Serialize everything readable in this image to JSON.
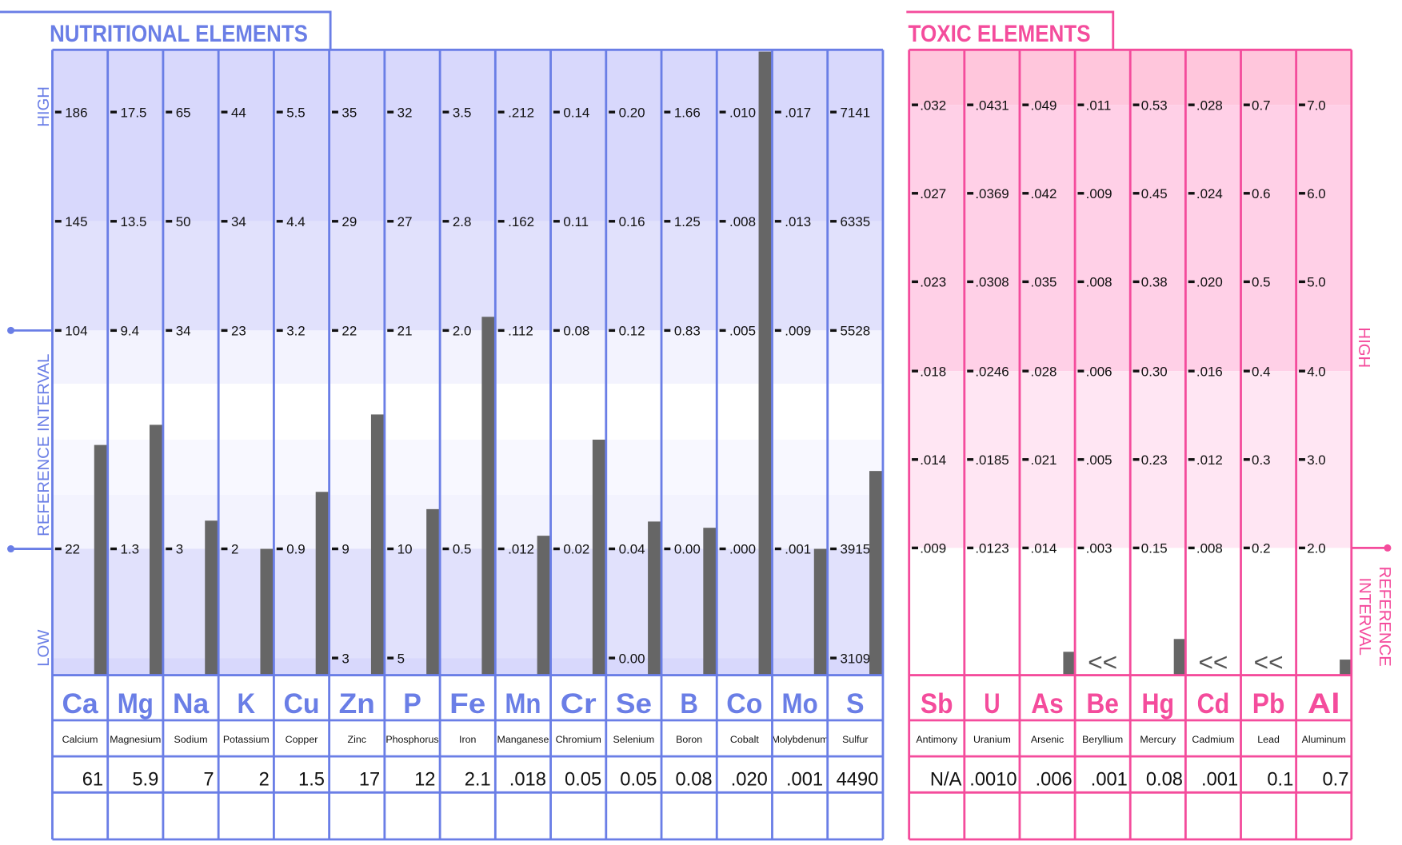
{
  "colors": {
    "nutritional": "#6a7ee6",
    "toxic": "#f44c9c",
    "bar": "#666666"
  },
  "chart_data": [
    {
      "type": "bar",
      "title": "NUTRITIONAL ELEMENTS",
      "side_labels": {
        "high": "HIGH",
        "reference": "REFERENCE INTERVAL",
        "low": "LOW"
      },
      "elements": [
        {
          "symbol": "Ca",
          "name": "Calcium",
          "result": "61",
          "ticks": [
            "186",
            "145",
            "104",
            "22",
            null
          ]
        },
        {
          "symbol": "Mg",
          "name": "Magnesium",
          "result": "5.9",
          "ticks": [
            "17.5",
            "13.5",
            "9.4",
            "1.3",
            null
          ]
        },
        {
          "symbol": "Na",
          "name": "Sodium",
          "result": "7",
          "ticks": [
            "65",
            "50",
            "34",
            "3",
            null
          ]
        },
        {
          "symbol": "K",
          "name": "Potassium",
          "result": "2",
          "ticks": [
            "44",
            "34",
            "23",
            "2",
            null
          ]
        },
        {
          "symbol": "Cu",
          "name": "Copper",
          "result": "1.5",
          "ticks": [
            "5.5",
            "4.4",
            "3.2",
            "0.9",
            null
          ]
        },
        {
          "symbol": "Zn",
          "name": "Zinc",
          "result": "17",
          "ticks": [
            "35",
            "29",
            "22",
            "9",
            "3"
          ]
        },
        {
          "symbol": "P",
          "name": "Phosphorus",
          "result": "12",
          "ticks": [
            "32",
            "27",
            "21",
            "10",
            "5"
          ]
        },
        {
          "symbol": "Fe",
          "name": "Iron",
          "result": "2.1",
          "ticks": [
            "3.5",
            "2.8",
            "2.0",
            "0.5",
            null
          ]
        },
        {
          "symbol": "Mn",
          "name": "Manganese",
          "result": ".018",
          "ticks": [
            ".212",
            ".162",
            ".112",
            ".012",
            null
          ]
        },
        {
          "symbol": "Cr",
          "name": "Chromium",
          "result": "0.05",
          "ticks": [
            "0.14",
            "0.11",
            "0.08",
            "0.02",
            null
          ]
        },
        {
          "symbol": "Se",
          "name": "Selenium",
          "result": "0.05",
          "ticks": [
            "0.20",
            "0.16",
            "0.12",
            "0.04",
            "0.00"
          ]
        },
        {
          "symbol": "B",
          "name": "Boron",
          "result": "0.08",
          "ticks": [
            "1.66",
            "1.25",
            "0.83",
            "0.00",
            null
          ]
        },
        {
          "symbol": "Co",
          "name": "Cobalt",
          "result": ".020",
          "ticks": [
            ".010",
            ".008",
            ".005",
            ".000",
            null
          ]
        },
        {
          "symbol": "Mo",
          "name": "Molybdenum",
          "result": ".001",
          "ticks": [
            ".017",
            ".013",
            ".009",
            ".001",
            null
          ]
        },
        {
          "symbol": "S",
          "name": "Sulfur",
          "result": "4490",
          "ticks": [
            "7141",
            "6335",
            "5528",
            "3915",
            "3109"
          ]
        }
      ]
    },
    {
      "type": "bar",
      "title": "TOXIC ELEMENTS",
      "side_labels": {
        "high": "HIGH",
        "reference": [
          "REFERENCE",
          "INTERVAL"
        ]
      },
      "elements": [
        {
          "symbol": "Sb",
          "name": "Antimony",
          "result": "N/A",
          "ticks": [
            ".032",
            ".027",
            ".023",
            ".018",
            ".014",
            ".009"
          ]
        },
        {
          "symbol": "U",
          "name": "Uranium",
          "result": ".0010",
          "ticks": [
            ".0431",
            ".0369",
            ".0308",
            ".0246",
            ".0185",
            ".0123"
          ]
        },
        {
          "symbol": "As",
          "name": "Arsenic",
          "result": ".006",
          "ticks": [
            ".049",
            ".042",
            ".035",
            ".028",
            ".021",
            ".014"
          ]
        },
        {
          "symbol": "Be",
          "name": "Beryllium",
          "result": ".001",
          "below_marker": "<<",
          "ticks": [
            ".011",
            ".009",
            ".008",
            ".006",
            ".005",
            ".003"
          ]
        },
        {
          "symbol": "Hg",
          "name": "Mercury",
          "result": "0.08",
          "ticks": [
            "0.53",
            "0.45",
            "0.38",
            "0.30",
            "0.23",
            "0.15"
          ]
        },
        {
          "symbol": "Cd",
          "name": "Cadmium",
          "result": ".001",
          "below_marker": "<<",
          "ticks": [
            ".028",
            ".024",
            ".020",
            ".016",
            ".012",
            ".008"
          ]
        },
        {
          "symbol": "Pb",
          "name": "Lead",
          "result": "0.1",
          "below_marker": "<<",
          "ticks": [
            "0.7",
            "0.6",
            "0.5",
            "0.4",
            "0.3",
            "0.2"
          ]
        },
        {
          "symbol": "Al",
          "name": "Aluminum",
          "result": "0.7",
          "ticks": [
            "7.0",
            "6.0",
            "5.0",
            "4.0",
            "3.0",
            "2.0"
          ]
        }
      ]
    }
  ]
}
